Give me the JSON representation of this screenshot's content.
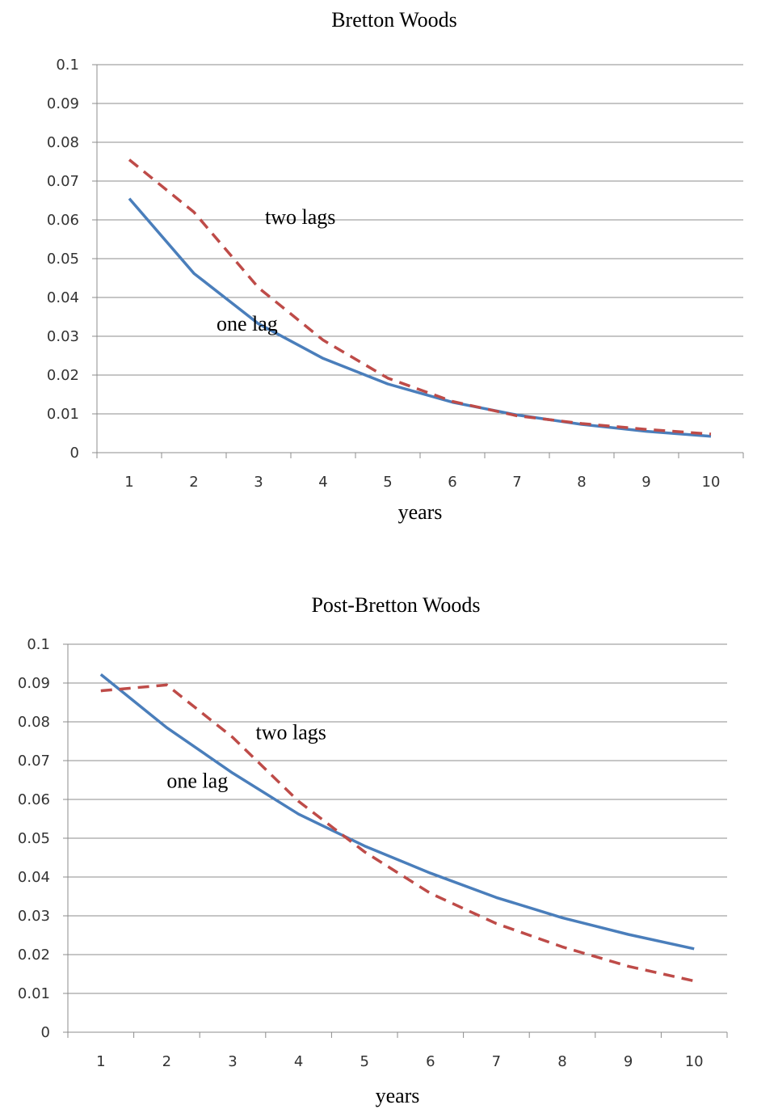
{
  "chart_data": [
    {
      "type": "line",
      "title": "Bretton Woods",
      "xlabel": "years",
      "ylabel": "",
      "x": [
        1,
        2,
        3,
        4,
        5,
        6,
        7,
        8,
        9,
        10
      ],
      "ylim": [
        0,
        0.1
      ],
      "yticks": [
        "0",
        "0.01",
        "0.02",
        "0.03",
        "0.04",
        "0.05",
        "0.06",
        "0.07",
        "0.08",
        "0.09",
        "0.1"
      ],
      "xticks": [
        "1",
        "2",
        "3",
        "4",
        "5",
        "6",
        "7",
        "8",
        "9",
        "10"
      ],
      "grid": true,
      "series": [
        {
          "name": "one lag",
          "values": [
            0.0655,
            0.0462,
            0.0332,
            0.0243,
            0.0177,
            0.013,
            0.0097,
            0.0073,
            0.0055,
            0.0042
          ],
          "color": "#4a7ebb",
          "dash": "solid"
        },
        {
          "name": "two lags",
          "values": [
            0.0755,
            0.062,
            0.0425,
            0.029,
            0.0192,
            0.0132,
            0.0095,
            0.0075,
            0.006,
            0.0048
          ],
          "color": "#be4b48",
          "dash": "dashed"
        }
      ],
      "annotations": [
        {
          "text": "two lags",
          "x": 3.1,
          "y": 0.059
        },
        {
          "text": "one lag",
          "x": 2.35,
          "y": 0.0315
        }
      ]
    },
    {
      "type": "line",
      "title": "Post-Bretton Woods",
      "xlabel": "years",
      "ylabel": "",
      "x": [
        1,
        2,
        3,
        4,
        5,
        6,
        7,
        8,
        9,
        10
      ],
      "ylim": [
        0,
        0.1
      ],
      "yticks": [
        "0",
        "0.01",
        "0.02",
        "0.03",
        "0.04",
        "0.05",
        "0.06",
        "0.07",
        "0.08",
        "0.09",
        "0.1"
      ],
      "xticks": [
        "1",
        "2",
        "3",
        "4",
        "5",
        "6",
        "7",
        "8",
        "9",
        "10"
      ],
      "grid": true,
      "series": [
        {
          "name": "one lag",
          "values": [
            0.0922,
            0.0785,
            0.0668,
            0.0562,
            0.048,
            0.041,
            0.0347,
            0.0295,
            0.0252,
            0.0215
          ],
          "color": "#4a7ebb",
          "dash": "solid"
        },
        {
          "name": "two lags",
          "values": [
            0.088,
            0.0895,
            0.076,
            0.0595,
            0.0465,
            0.0358,
            0.028,
            0.022,
            0.017,
            0.0132
          ],
          "color": "#be4b48",
          "dash": "dashed"
        }
      ],
      "annotations": [
        {
          "text": "two lags",
          "x": 3.35,
          "y": 0.0755
        },
        {
          "text": "one lag",
          "x": 2.0,
          "y": 0.063
        }
      ]
    }
  ]
}
